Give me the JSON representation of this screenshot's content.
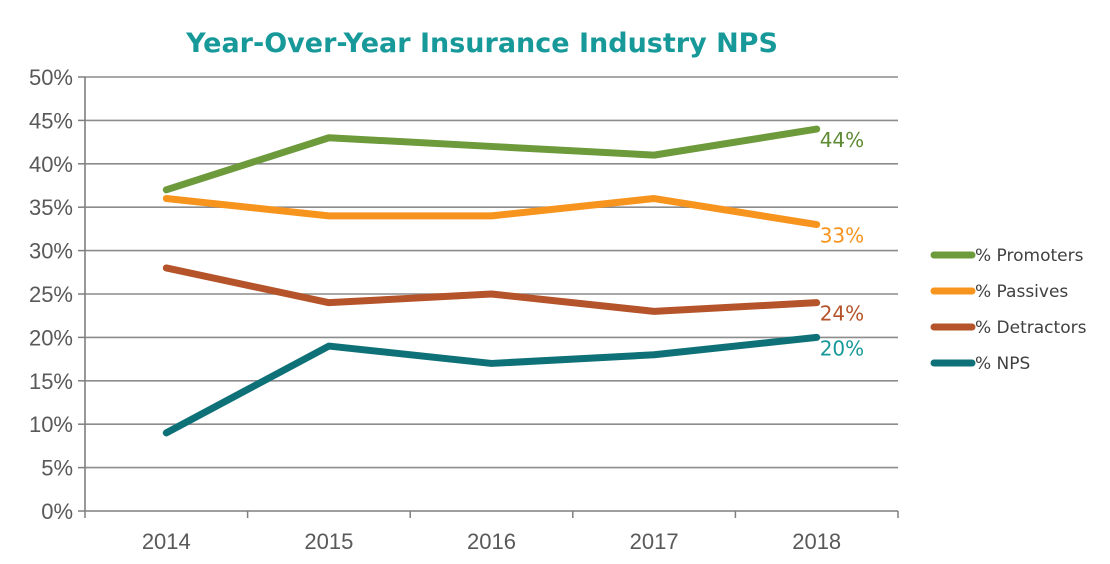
{
  "chart_data": {
    "type": "line",
    "title": "Year-Over-Year Insurance Industry NPS",
    "title_color": "#17999a",
    "categories": [
      "2014",
      "2015",
      "2016",
      "2017",
      "2018"
    ],
    "ylim": [
      0,
      50
    ],
    "ytick_step": 5,
    "ytick_labels": [
      "0%",
      "5%",
      "10%",
      "15%",
      "20%",
      "25%",
      "30%",
      "35%",
      "40%",
      "45%",
      "50%"
    ],
    "grid": true,
    "legend_position": "right",
    "series": [
      {
        "name": "% Promoters",
        "color": "#6d9a3b",
        "label_color": "#5e8a34",
        "values": [
          37,
          43,
          42,
          41,
          44
        ],
        "end_label": "44%"
      },
      {
        "name": "% Passives",
        "color": "#f7941e",
        "label_color": "#f7941e",
        "values": [
          36,
          34,
          34,
          36,
          33
        ],
        "end_label": "33%"
      },
      {
        "name": "% Detractors",
        "color": "#b5532a",
        "label_color": "#b5532a",
        "values": [
          28,
          24,
          25,
          23,
          24
        ],
        "end_label": "24%"
      },
      {
        "name": "% NPS",
        "color": "#0f7178",
        "label_color": "#17999a",
        "values": [
          9,
          19,
          17,
          18,
          20
        ],
        "end_label": "20%"
      }
    ]
  }
}
